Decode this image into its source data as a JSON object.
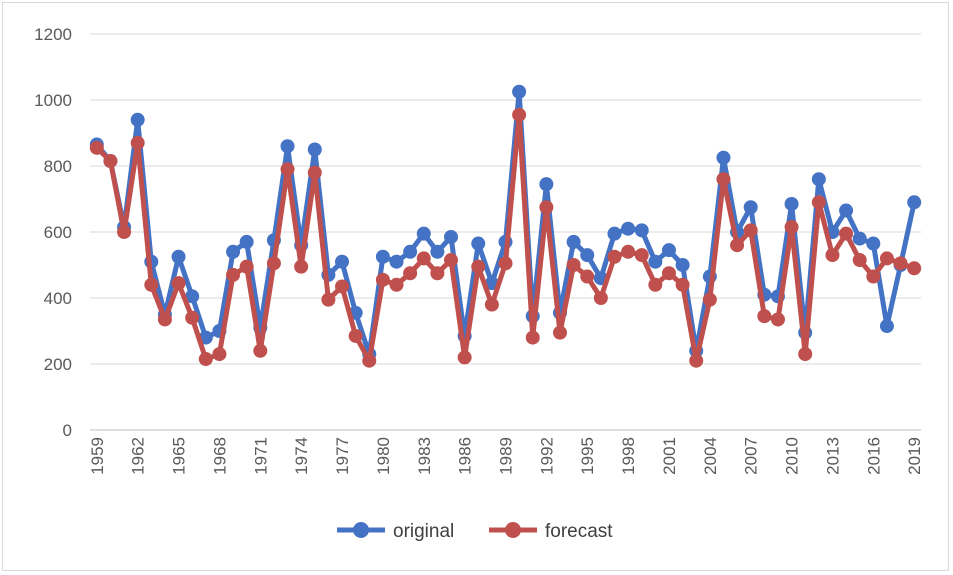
{
  "chart_data": {
    "type": "line",
    "title": "",
    "xlabel": "",
    "ylabel": "",
    "ylim": [
      0,
      1200
    ],
    "yticks": [
      0,
      200,
      400,
      600,
      800,
      1000,
      1200
    ],
    "grid": true,
    "legend_position": "bottom",
    "x": [
      1959,
      1960,
      1961,
      1962,
      1963,
      1964,
      1965,
      1966,
      1967,
      1968,
      1969,
      1970,
      1971,
      1972,
      1973,
      1974,
      1975,
      1976,
      1977,
      1978,
      1979,
      1980,
      1981,
      1982,
      1983,
      1984,
      1985,
      1986,
      1987,
      1988,
      1989,
      1990,
      1991,
      1992,
      1993,
      1994,
      1995,
      1996,
      1997,
      1998,
      1999,
      2000,
      2001,
      2002,
      2003,
      2004,
      2005,
      2006,
      2007,
      2008,
      2009,
      2010,
      2011,
      2012,
      2013,
      2014,
      2015,
      2016,
      2017,
      2018,
      2019
    ],
    "xtick_labels": [
      "1959",
      "1962",
      "1965",
      "1968",
      "1971",
      "1974",
      "1977",
      "1980",
      "1983",
      "1986",
      "1989",
      "1992",
      "1995",
      "1998",
      "2001",
      "2004",
      "2007",
      "2010",
      "2013",
      "2016",
      "2019"
    ],
    "series": [
      {
        "name": "original",
        "color": "#4472c4",
        "values": [
          865,
          815,
          615,
          940,
          510,
          350,
          525,
          405,
          280,
          300,
          540,
          570,
          310,
          575,
          860,
          560,
          850,
          470,
          510,
          355,
          230,
          525,
          510,
          540,
          595,
          540,
          585,
          285,
          565,
          445,
          570,
          1025,
          345,
          745,
          355,
          570,
          530,
          460,
          595,
          610,
          605,
          510,
          545,
          500,
          240,
          465,
          825,
          600,
          675,
          410,
          405,
          685,
          295,
          760,
          600,
          665,
          580,
          565,
          315,
          500,
          690
        ]
      },
      {
        "name": "forecast",
        "color": "#c0504d",
        "values": [
          855,
          815,
          600,
          870,
          440,
          335,
          445,
          340,
          215,
          230,
          470,
          495,
          240,
          505,
          790,
          495,
          780,
          395,
          435,
          285,
          210,
          455,
          440,
          475,
          520,
          475,
          515,
          220,
          495,
          380,
          505,
          955,
          280,
          675,
          295,
          500,
          465,
          400,
          525,
          540,
          530,
          440,
          475,
          440,
          210,
          395,
          760,
          560,
          605,
          345,
          335,
          615,
          230,
          690,
          530,
          595,
          515,
          465,
          520,
          505,
          490
        ]
      }
    ]
  }
}
